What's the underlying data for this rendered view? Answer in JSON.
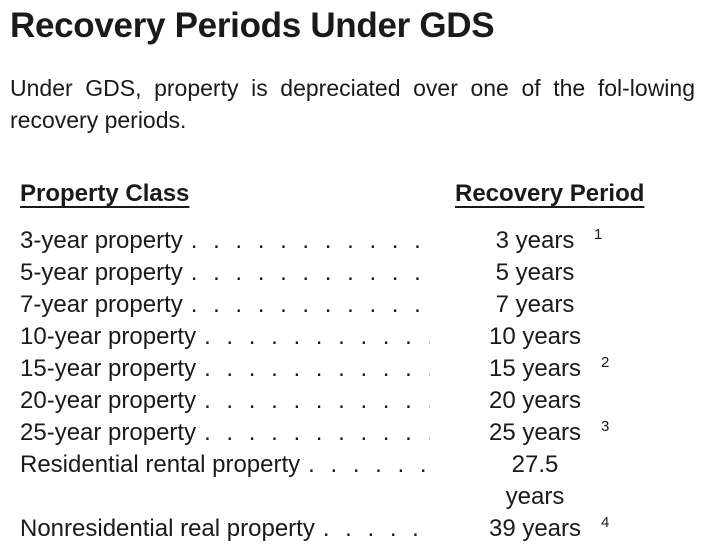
{
  "heading": "Recovery Periods Under GDS",
  "intro": "Under GDS, property is depreciated over one of the fol-lowing recovery periods.",
  "table": {
    "header_class": "Property Class",
    "header_period": "Recovery Period",
    "leader": ". . . . . . . . . . . . . . . . . . . . . . . . . . . . . . . . . . . . .",
    "rows": [
      {
        "class": "3-year property",
        "period": "3 years",
        "note": "1"
      },
      {
        "class": "5-year property",
        "period": "5 years",
        "note": ""
      },
      {
        "class": "7-year property",
        "period": "7 years",
        "note": ""
      },
      {
        "class": "10-year property",
        "period": "10 years",
        "note": ""
      },
      {
        "class": "15-year property",
        "period": "15 years",
        "note": "2"
      },
      {
        "class": "20-year property",
        "period": "20 years",
        "note": ""
      },
      {
        "class": "25-year property",
        "period": "25 years",
        "note": "3"
      },
      {
        "class": "Residential rental property",
        "period": "27.5 years",
        "note": ""
      },
      {
        "class": "Nonresidential real property",
        "period": "39 years",
        "note": "4"
      }
    ]
  }
}
